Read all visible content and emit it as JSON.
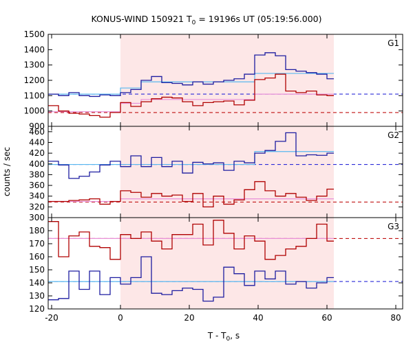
{
  "chart_data": {
    "type": "line",
    "title": {
      "prefix": "KONUS-WIND 150921 T",
      "sub": "0",
      "suffix": " = 19196s UT (05:19:56.000)"
    },
    "xlabel": {
      "prefix": "T - T",
      "sub": "0",
      "suffix": ", s"
    },
    "ylabel": "counts / sec",
    "xlim": [
      -21,
      82
    ],
    "xticks": [
      -20,
      0,
      20,
      40,
      60,
      80
    ],
    "highlight_region": {
      "x0": 0,
      "x1": 62,
      "color": "#fde7e7"
    },
    "colors": {
      "data_blue": "#1c1ca0",
      "data_red": "#b00000",
      "fit_blue": "#58b8f0",
      "fit_red": "#e890d8",
      "bg_blue": "#2a2ad8",
      "bg_red": "#c01010"
    },
    "panels": [
      {
        "label": "G1",
        "ylim": [
          900,
          1500
        ],
        "yticks": [
          900,
          1000,
          1100,
          1200,
          1300,
          1400,
          1500
        ],
        "series": [
          {
            "color": "blue",
            "x": [
              -21,
              -18,
              -15,
              -12,
              -9,
              -6,
              -3,
              0,
              3,
              6,
              9,
              12,
              15,
              18,
              21,
              24,
              27,
              30,
              33,
              36,
              39,
              42,
              45,
              48,
              51,
              54,
              57,
              60,
              62
            ],
            "y": [
              1110,
              1100,
              1120,
              1100,
              1095,
              1105,
              1100,
              1120,
              1140,
              1200,
              1225,
              1185,
              1180,
              1170,
              1190,
              1175,
              1190,
              1200,
              1210,
              1240,
              1365,
              1380,
              1360,
              1270,
              1260,
              1250,
              1240,
              1210,
              1210
            ]
          },
          {
            "color": "red",
            "x": [
              -21,
              -18,
              -15,
              -12,
              -9,
              -6,
              -3,
              0,
              3,
              6,
              9,
              12,
              15,
              18,
              21,
              24,
              27,
              30,
              33,
              36,
              39,
              42,
              45,
              48,
              51,
              54,
              57,
              60,
              62
            ],
            "y": [
              1035,
              1000,
              985,
              980,
              970,
              960,
              990,
              1055,
              1030,
              1060,
              1080,
              1090,
              1085,
              1060,
              1035,
              1055,
              1060,
              1065,
              1040,
              1070,
              1205,
              1215,
              1240,
              1130,
              1120,
              1130,
              1105,
              1100,
              1100
            ]
          }
        ],
        "fits": [
          {
            "color": "fit_blue",
            "x": [
              -21,
              0,
              6,
              39,
              62
            ],
            "y": [
              1110,
              1150,
              1190,
              1245,
              1245
            ]
          },
          {
            "color": "fit_red",
            "x": [
              -21,
              0,
              6,
              39,
              62
            ],
            "y": [
              995,
              1050,
              1075,
              1110,
              1110
            ]
          }
        ],
        "backgrounds": [
          {
            "color": "bg_blue",
            "y": 1110
          },
          {
            "color": "bg_red",
            "y": 990
          }
        ]
      },
      {
        "label": "G2",
        "ylim": [
          300,
          470
        ],
        "yticks": [
          300,
          320,
          340,
          360,
          380,
          400,
          420,
          440,
          460
        ],
        "series": [
          {
            "color": "blue",
            "x": [
              -21,
              -18,
              -15,
              -12,
              -9,
              -6,
              -3,
              0,
              3,
              6,
              9,
              12,
              15,
              18,
              21,
              24,
              27,
              30,
              33,
              36,
              39,
              42,
              45,
              48,
              51,
              54,
              57,
              60,
              62
            ],
            "y": [
              405,
              398,
              373,
              377,
              385,
              398,
              405,
              395,
              415,
              395,
              412,
              395,
              405,
              383,
              403,
              400,
              402,
              388,
              405,
              402,
              420,
              425,
              442,
              458,
              415,
              417,
              416,
              420,
              403
            ]
          },
          {
            "color": "red",
            "x": [
              -21,
              -18,
              -15,
              -12,
              -9,
              -6,
              -3,
              0,
              3,
              6,
              9,
              12,
              15,
              18,
              21,
              24,
              27,
              30,
              33,
              36,
              39,
              42,
              45,
              48,
              51,
              54,
              57,
              60,
              62
            ],
            "y": [
              330,
              330,
              332,
              333,
              335,
              325,
              330,
              350,
              347,
              338,
              345,
              340,
              342,
              330,
              345,
              320,
              340,
              325,
              333,
              352,
              367,
              350,
              340,
              345,
              338,
              332,
              340,
              353,
              353
            ]
          }
        ],
        "fits": [
          {
            "color": "fit_blue",
            "x": [
              -21,
              0,
              39,
              62
            ],
            "y": [
              399,
              399,
              423,
              423
            ]
          },
          {
            "color": "fit_red",
            "x": [
              -21,
              0,
              62
            ],
            "y": [
              330,
              335,
              340
            ]
          }
        ],
        "backgrounds": [
          {
            "color": "bg_blue",
            "y": 399
          },
          {
            "color": "bg_red",
            "y": 329
          }
        ]
      },
      {
        "label": "G3",
        "ylim": [
          120,
          190
        ],
        "yticks": [
          120,
          130,
          140,
          150,
          160,
          170,
          180
        ],
        "series": [
          {
            "color": "blue",
            "x": [
              -21,
              -18,
              -15,
              -12,
              -9,
              -6,
              -3,
              0,
              3,
              6,
              9,
              12,
              15,
              18,
              21,
              24,
              27,
              30,
              33,
              36,
              39,
              42,
              45,
              48,
              51,
              54,
              57,
              60,
              62
            ],
            "y": [
              127,
              128,
              149,
              135,
              149,
              131,
              144,
              139,
              144,
              160,
              132,
              131,
              134,
              136,
              135,
              126,
              129,
              152,
              147,
              138,
              149,
              143,
              149,
              139,
              141,
              136,
              140,
              144,
              144
            ]
          },
          {
            "color": "red",
            "x": [
              -21,
              -18,
              -15,
              -12,
              -9,
              -6,
              -3,
              0,
              3,
              6,
              9,
              12,
              15,
              18,
              21,
              24,
              27,
              30,
              33,
              36,
              39,
              42,
              45,
              48,
              51,
              54,
              57,
              60,
              62
            ],
            "y": [
              187,
              160,
              176,
              179,
              168,
              167,
              158,
              177,
              174,
              179,
              172,
              166,
              177,
              177,
              185,
              169,
              188,
              178,
              166,
              176,
              172,
              158,
              161,
              166,
              168,
              174,
              185,
              172,
              172
            ]
          }
        ],
        "fits": [
          {
            "color": "fit_blue",
            "x": [
              -21,
              62
            ],
            "y": [
              141,
              141
            ]
          },
          {
            "color": "fit_red",
            "x": [
              -21,
              62
            ],
            "y": [
              174,
              174
            ]
          }
        ],
        "backgrounds": [
          {
            "color": "bg_blue",
            "y": 141
          },
          {
            "color": "bg_red",
            "y": 174
          }
        ]
      }
    ]
  }
}
